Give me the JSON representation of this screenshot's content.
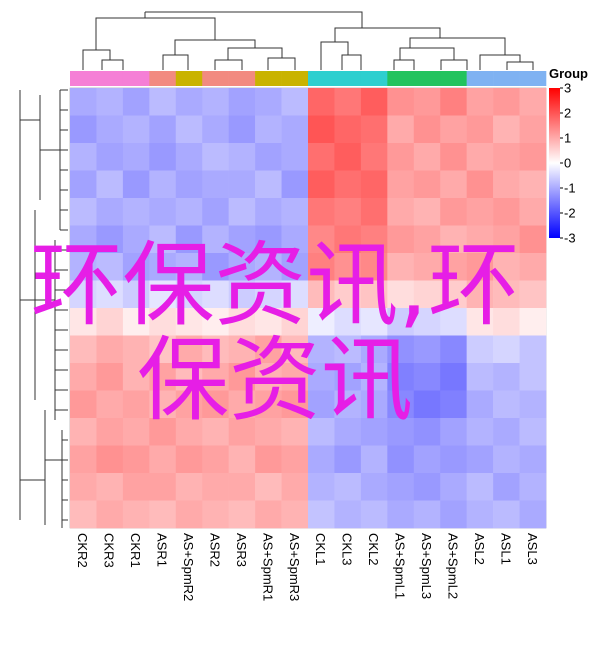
{
  "chart_data": {
    "type": "heatmap",
    "columns": [
      "CKR2",
      "CKR3",
      "CKR1",
      "ASR1",
      "AS+SpmR2",
      "ASR2",
      "ASR3",
      "AS+SpmR1",
      "AS+SpmR3",
      "CKL1",
      "CKL3",
      "CKL2",
      "AS+SpmL1",
      "AS+SpmL3",
      "AS+SpmL2",
      "ASL2",
      "ASL1",
      "ASL3"
    ],
    "column_colors": [
      "#f57fd6",
      "#f57fd6",
      "#f57fd6",
      "#f28a80",
      "#c9b300",
      "#f28a80",
      "#f28a80",
      "#c9b300",
      "#c9b300",
      "#2ecfcf",
      "#2ecfcf",
      "#2ecfcf",
      "#22c35e",
      "#22c35e",
      "#22c35e",
      "#7fb2f2",
      "#7fb2f2",
      "#7fb2f2"
    ],
    "values": [
      [
        -1.0,
        -0.9,
        -1.1,
        -0.8,
        -1.0,
        -0.9,
        -1.1,
        -1.0,
        -0.8,
        1.8,
        1.6,
        1.9,
        1.3,
        1.2,
        1.5,
        1.1,
        1.2,
        1.0
      ],
      [
        -1.2,
        -1.0,
        -0.9,
        -1.1,
        -0.8,
        -1.0,
        -1.2,
        -0.9,
        -1.0,
        2.0,
        1.8,
        1.7,
        1.0,
        1.3,
        1.1,
        1.2,
        0.9,
        1.1
      ],
      [
        -0.9,
        -1.1,
        -1.0,
        -1.2,
        -1.0,
        -0.8,
        -0.9,
        -1.1,
        -1.0,
        1.7,
        1.9,
        1.6,
        1.2,
        1.0,
        1.3,
        1.0,
        1.1,
        1.2
      ],
      [
        -1.1,
        -0.8,
        -1.2,
        -0.9,
        -1.1,
        -1.0,
        -1.0,
        -0.8,
        -1.2,
        1.9,
        1.7,
        1.8,
        1.1,
        1.2,
        1.0,
        1.3,
        1.0,
        0.9
      ],
      [
        -0.8,
        -1.0,
        -0.9,
        -1.0,
        -0.9,
        -1.1,
        -0.8,
        -1.0,
        -0.9,
        1.6,
        1.5,
        1.7,
        1.0,
        0.9,
        1.2,
        1.1,
        1.2,
        1.0
      ],
      [
        -1.0,
        -1.2,
        -1.0,
        -0.8,
        -1.2,
        -0.9,
        -1.1,
        -1.2,
        -1.0,
        1.4,
        1.6,
        1.5,
        1.2,
        1.1,
        0.9,
        1.0,
        1.1,
        1.3
      ],
      [
        -0.9,
        -0.8,
        -1.1,
        -1.0,
        -0.9,
        -1.2,
        -1.0,
        -0.9,
        -1.1,
        1.5,
        1.3,
        1.4,
        0.9,
        1.0,
        1.1,
        1.2,
        0.9,
        1.0
      ],
      [
        -0.5,
        -0.4,
        -0.6,
        -0.3,
        -0.5,
        -0.4,
        -0.6,
        -0.5,
        -0.4,
        0.8,
        0.6,
        0.7,
        0.4,
        0.5,
        0.6,
        0.9,
        0.8,
        0.7
      ],
      [
        0.3,
        0.5,
        0.2,
        0.4,
        0.3,
        0.2,
        0.4,
        0.3,
        0.5,
        -0.2,
        -0.4,
        -0.3,
        -0.6,
        -0.5,
        -0.4,
        0.3,
        0.4,
        0.2
      ],
      [
        0.8,
        1.0,
        0.9,
        0.7,
        1.0,
        0.8,
        0.9,
        1.1,
        0.8,
        -0.9,
        -0.8,
        -1.0,
        -1.3,
        -1.2,
        -1.4,
        -0.6,
        -0.5,
        -0.7
      ],
      [
        1.0,
        1.2,
        0.9,
        1.1,
        0.8,
        1.0,
        1.2,
        0.9,
        1.0,
        -1.0,
        -1.1,
        -0.9,
        -1.5,
        -1.4,
        -1.6,
        -0.8,
        -0.9,
        -0.7
      ],
      [
        1.2,
        1.0,
        1.1,
        0.9,
        1.1,
        1.2,
        1.0,
        1.1,
        1.2,
        -1.1,
        -0.9,
        -1.0,
        -1.4,
        -1.6,
        -1.5,
        -1.0,
        -0.8,
        -0.9
      ],
      [
        0.9,
        1.1,
        1.0,
        1.2,
        1.0,
        0.9,
        1.1,
        1.0,
        0.9,
        -0.8,
        -1.0,
        -1.1,
        -1.2,
        -1.3,
        -1.1,
        -0.9,
        -1.0,
        -0.8
      ],
      [
        1.1,
        1.3,
        1.2,
        1.0,
        1.2,
        1.1,
        0.9,
        1.2,
        1.1,
        -1.0,
        -1.2,
        -0.9,
        -1.3,
        -1.1,
        -1.2,
        -1.1,
        -0.9,
        -1.0
      ],
      [
        1.0,
        0.9,
        1.1,
        1.1,
        0.9,
        1.0,
        1.0,
        0.8,
        1.0,
        -0.9,
        -0.8,
        -1.0,
        -1.1,
        -1.2,
        -1.0,
        -0.8,
        -1.1,
        -0.9
      ],
      [
        0.8,
        1.0,
        0.9,
        0.8,
        1.0,
        0.9,
        0.8,
        1.0,
        0.9,
        -0.7,
        -0.9,
        -0.8,
        -1.0,
        -0.9,
        -1.1,
        -0.9,
        -0.8,
        -1.0
      ]
    ],
    "clim": [
      -3,
      3
    ],
    "colorticks": [
      3,
      2,
      1,
      0,
      -1,
      -2,
      -3
    ],
    "colorscale": [
      "#0000ff",
      "#ffffff",
      "#ff0000"
    ],
    "legend_title": "Group",
    "watermark": "环保资讯,环保资讯"
  }
}
